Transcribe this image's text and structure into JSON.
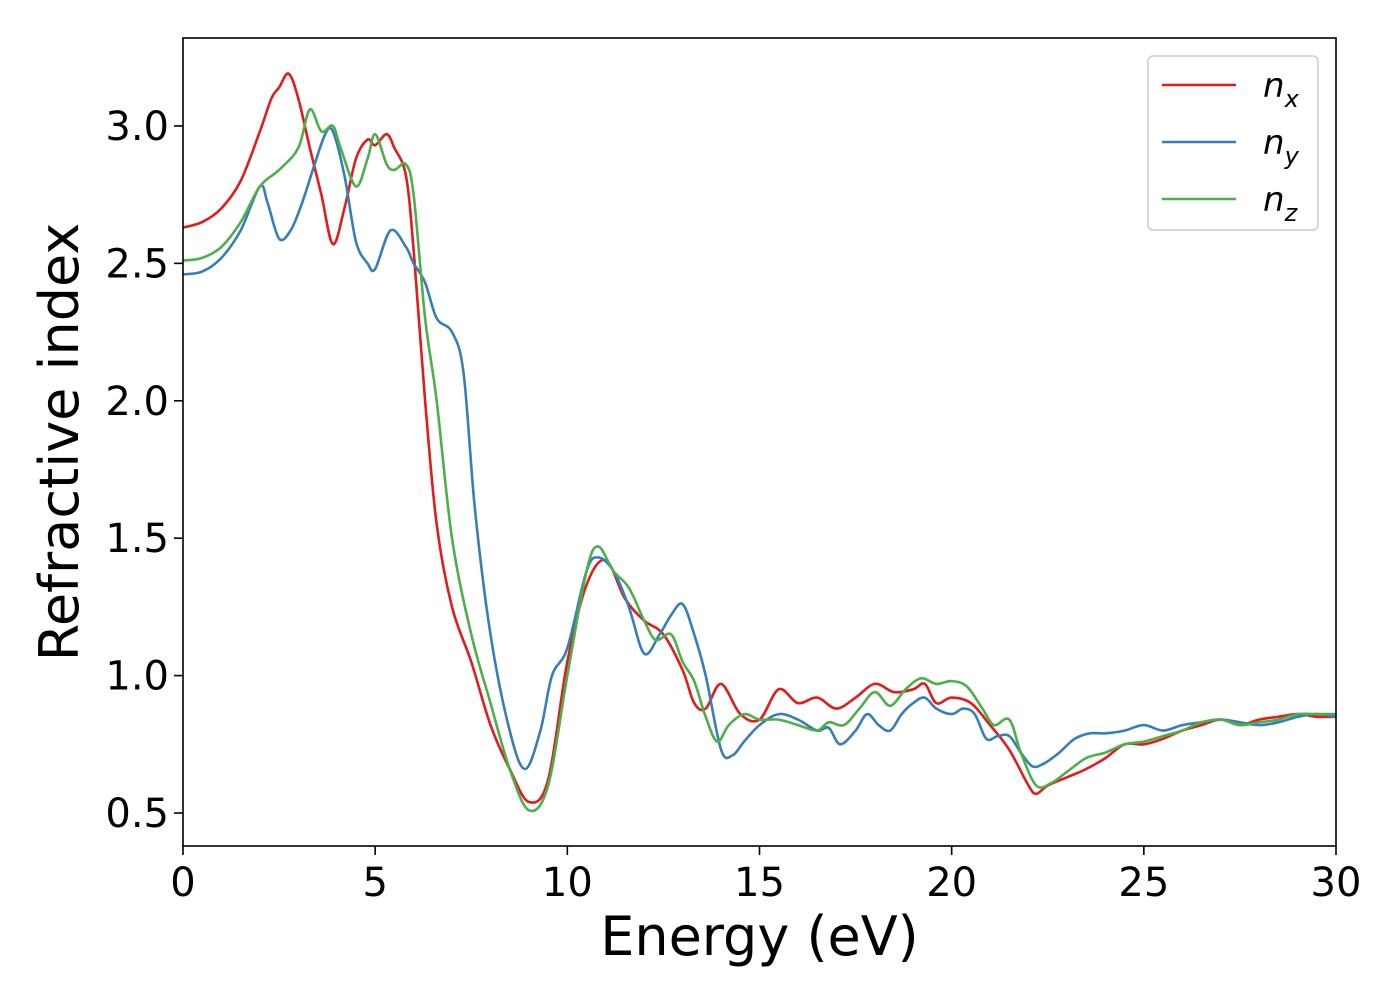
{
  "chart_data": {
    "type": "line",
    "xlabel": "Energy (eV)",
    "ylabel": "Refractive index",
    "xlim": [
      0,
      30
    ],
    "ylim": [
      0.38,
      3.32
    ],
    "xticks": [
      0,
      5,
      10,
      15,
      20,
      25,
      30
    ],
    "yticks": [
      0.5,
      1.0,
      1.5,
      2.0,
      2.5,
      3.0
    ],
    "xtick_labels": [
      "0",
      "5",
      "10",
      "15",
      "20",
      "25",
      "30"
    ],
    "ytick_labels": [
      "0.5",
      "1.0",
      "1.5",
      "2.0",
      "2.5",
      "3.0"
    ],
    "grid": false,
    "legend_position": "top-right",
    "series": [
      {
        "base": "n",
        "sub": "x",
        "color": "#e41a1c",
        "x": [
          0,
          0.5,
          1.0,
          1.5,
          2.0,
          2.3,
          2.5,
          2.75,
          3.0,
          3.3,
          3.6,
          3.9,
          4.2,
          4.5,
          4.8,
          5.0,
          5.3,
          5.5,
          5.8,
          6.0,
          6.3,
          6.6,
          7.0,
          7.5,
          8.0,
          8.5,
          9.0,
          9.5,
          10.0,
          10.5,
          11.0,
          11.5,
          12.0,
          12.5,
          13.0,
          13.3,
          13.6,
          14.0,
          14.5,
          15.0,
          15.5,
          16.0,
          16.5,
          17.0,
          17.5,
          18.0,
          18.5,
          19.0,
          19.3,
          19.6,
          20.0,
          20.5,
          21.0,
          21.5,
          22.0,
          22.2,
          22.5,
          23.0,
          23.5,
          24.0,
          24.5,
          25.0,
          25.5,
          26.0,
          26.5,
          27.0,
          27.5,
          28.0,
          28.5,
          29.0,
          29.5,
          30.0
        ],
        "y": [
          2.63,
          2.65,
          2.7,
          2.8,
          2.98,
          3.1,
          3.14,
          3.19,
          3.1,
          2.92,
          2.75,
          2.57,
          2.7,
          2.88,
          2.95,
          2.93,
          2.97,
          2.92,
          2.82,
          2.55,
          2.0,
          1.55,
          1.25,
          1.05,
          0.82,
          0.66,
          0.54,
          0.62,
          1.05,
          1.33,
          1.42,
          1.28,
          1.2,
          1.15,
          1.02,
          0.9,
          0.88,
          0.97,
          0.86,
          0.84,
          0.95,
          0.9,
          0.92,
          0.88,
          0.92,
          0.97,
          0.94,
          0.95,
          0.97,
          0.9,
          0.92,
          0.9,
          0.82,
          0.73,
          0.6,
          0.57,
          0.6,
          0.63,
          0.66,
          0.7,
          0.75,
          0.75,
          0.77,
          0.8,
          0.82,
          0.84,
          0.82,
          0.84,
          0.85,
          0.86,
          0.85,
          0.85
        ]
      },
      {
        "base": "n",
        "sub": "y",
        "color": "#377eb8",
        "x": [
          0,
          0.5,
          1.0,
          1.5,
          2.0,
          2.2,
          2.5,
          2.8,
          3.1,
          3.4,
          3.7,
          3.9,
          4.2,
          4.5,
          4.8,
          5.0,
          5.4,
          5.8,
          6.0,
          6.3,
          6.6,
          7.0,
          7.3,
          7.6,
          8.0,
          8.5,
          8.9,
          9.3,
          9.6,
          10.0,
          10.5,
          10.8,
          11.2,
          11.6,
          12.0,
          12.4,
          12.7,
          13.0,
          13.3,
          13.6,
          14.0,
          14.3,
          14.6,
          15.0,
          15.5,
          16.0,
          16.5,
          16.8,
          17.1,
          17.5,
          17.8,
          18.1,
          18.4,
          18.7,
          19.0,
          19.3,
          19.6,
          20.0,
          20.3,
          20.6,
          20.9,
          21.2,
          21.5,
          21.8,
          22.1,
          22.4,
          22.8,
          23.2,
          23.6,
          24.0,
          24.5,
          25.0,
          25.5,
          26.0,
          26.5,
          27.0,
          27.5,
          28.0,
          28.5,
          29.0,
          29.5,
          30.0
        ],
        "y": [
          2.46,
          2.47,
          2.52,
          2.62,
          2.78,
          2.72,
          2.59,
          2.62,
          2.72,
          2.85,
          2.97,
          2.98,
          2.82,
          2.58,
          2.5,
          2.48,
          2.62,
          2.56,
          2.5,
          2.43,
          2.3,
          2.25,
          2.1,
          1.6,
          1.15,
          0.8,
          0.66,
          0.8,
          1.0,
          1.1,
          1.38,
          1.43,
          1.38,
          1.25,
          1.08,
          1.15,
          1.22,
          1.26,
          1.15,
          1.0,
          0.73,
          0.71,
          0.76,
          0.82,
          0.86,
          0.84,
          0.8,
          0.81,
          0.75,
          0.8,
          0.86,
          0.82,
          0.8,
          0.86,
          0.9,
          0.92,
          0.88,
          0.86,
          0.88,
          0.86,
          0.77,
          0.78,
          0.78,
          0.72,
          0.67,
          0.68,
          0.72,
          0.77,
          0.79,
          0.79,
          0.8,
          0.82,
          0.8,
          0.82,
          0.83,
          0.84,
          0.83,
          0.82,
          0.83,
          0.85,
          0.86,
          0.85
        ]
      },
      {
        "base": "n",
        "sub": "z",
        "color": "#4daf4a",
        "x": [
          0,
          0.5,
          1.0,
          1.5,
          2.0,
          2.5,
          3.0,
          3.3,
          3.6,
          3.9,
          4.1,
          4.5,
          4.8,
          5.0,
          5.3,
          5.5,
          5.8,
          6.0,
          6.3,
          6.6,
          7.0,
          7.5,
          8.0,
          8.5,
          9.0,
          9.5,
          10.0,
          10.5,
          10.8,
          11.2,
          11.6,
          12.0,
          12.3,
          12.7,
          13.0,
          13.3,
          13.6,
          13.9,
          14.2,
          14.6,
          15.0,
          15.5,
          16.0,
          16.5,
          16.8,
          17.2,
          17.6,
          18.0,
          18.4,
          18.8,
          19.2,
          19.6,
          20.0,
          20.4,
          20.8,
          21.1,
          21.5,
          21.8,
          22.2,
          22.6,
          23.0,
          23.5,
          24.0,
          24.5,
          25.0,
          25.5,
          26.0,
          26.5,
          27.0,
          27.5,
          28.0,
          28.5,
          29.0,
          29.5,
          30.0
        ],
        "y": [
          2.51,
          2.52,
          2.56,
          2.65,
          2.78,
          2.84,
          2.92,
          3.06,
          2.98,
          3.0,
          2.92,
          2.78,
          2.88,
          2.97,
          2.86,
          2.84,
          2.86,
          2.75,
          2.3,
          2.0,
          1.5,
          1.15,
          0.9,
          0.66,
          0.51,
          0.6,
          1.0,
          1.38,
          1.47,
          1.38,
          1.32,
          1.2,
          1.13,
          1.15,
          1.05,
          0.98,
          0.85,
          0.76,
          0.82,
          0.86,
          0.84,
          0.84,
          0.82,
          0.8,
          0.83,
          0.82,
          0.88,
          0.94,
          0.89,
          0.95,
          0.99,
          0.97,
          0.98,
          0.96,
          0.88,
          0.82,
          0.84,
          0.72,
          0.6,
          0.61,
          0.65,
          0.7,
          0.72,
          0.75,
          0.76,
          0.78,
          0.8,
          0.83,
          0.84,
          0.82,
          0.83,
          0.84,
          0.86,
          0.86,
          0.86
        ]
      }
    ]
  }
}
